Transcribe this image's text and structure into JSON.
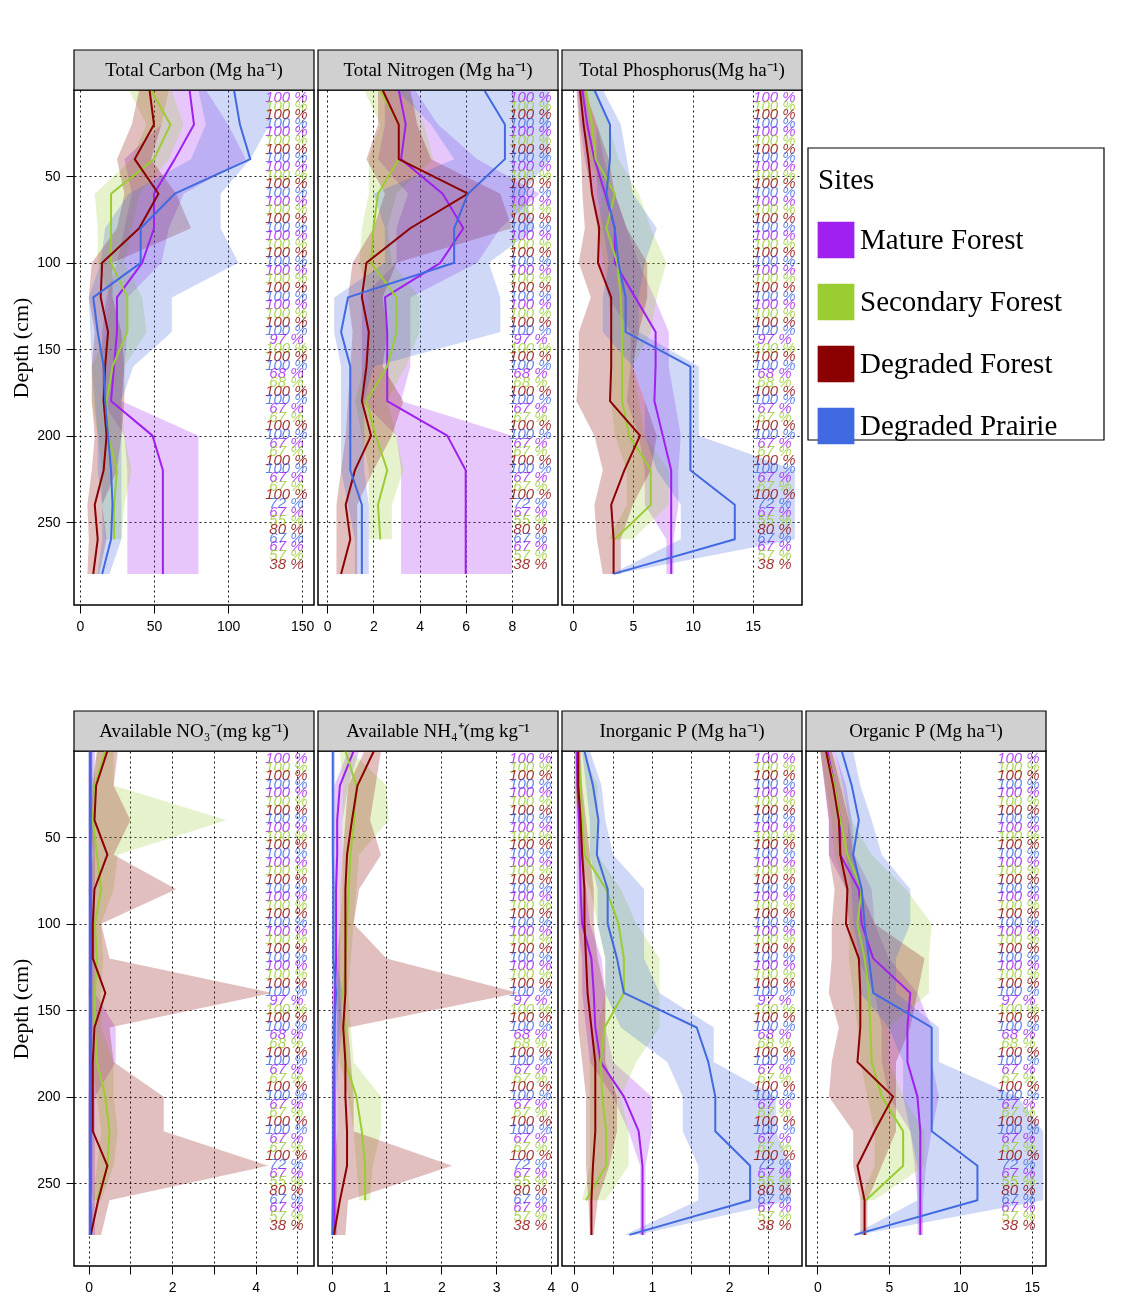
{
  "chart_data": [
    {
      "type": "line",
      "orientation": "horizontal",
      "title": "Total Carbon (Mg ha⁻¹)",
      "ylabel": "Depth (cm)",
      "xlim": [
        -4,
        158
      ],
      "xticks": [
        0,
        50,
        100,
        150
      ],
      "ylim": [
        298,
        0
      ],
      "yticks": [
        50,
        100,
        150,
        200,
        250
      ],
      "grid": true,
      "x": [
        0,
        20,
        40,
        60,
        80,
        100,
        120,
        140,
        160,
        180,
        200,
        220,
        240,
        260,
        280
      ],
      "series": [
        {
          "color": "#a020f0",
          "values": [
            74,
            77,
            64,
            50,
            50,
            42,
            25,
            25,
            23,
            21,
            49,
            56,
            56,
            56,
            56
          ],
          "lower": [
            60,
            55,
            30,
            35,
            30,
            25,
            18,
            15,
            15,
            15,
            30,
            32,
            32,
            32,
            32
          ],
          "upper": [
            85,
            100,
            112,
            70,
            60,
            55,
            32,
            32,
            30,
            28,
            80,
            80,
            80,
            80,
            80
          ]
        },
        {
          "color": "#9acd32",
          "values": [
            48,
            61,
            50,
            21,
            21,
            21,
            32,
            32,
            22,
            18,
            19,
            25,
            23,
            23,
            null
          ],
          "lower": [
            33,
            45,
            35,
            10,
            12,
            12,
            20,
            18,
            8,
            8,
            12,
            15,
            15,
            17,
            null
          ],
          "upper": [
            62,
            70,
            60,
            40,
            35,
            30,
            42,
            45,
            30,
            28,
            30,
            35,
            30,
            28,
            null
          ]
        },
        {
          "color": "#8b0000",
          "values": [
            47,
            50,
            37,
            53,
            40,
            15,
            14,
            19,
            17,
            16,
            18,
            16,
            10,
            12,
            9
          ],
          "lower": [
            40,
            35,
            25,
            30,
            25,
            8,
            6,
            10,
            8,
            8,
            10,
            8,
            5,
            6,
            5
          ],
          "upper": [
            60,
            55,
            48,
            65,
            75,
            22,
            22,
            28,
            30,
            30,
            28,
            25,
            15,
            18,
            13
          ]
        },
        {
          "color": "#4169e1",
          "values": [
            104,
            108,
            115,
            64,
            41,
            41,
            9,
            12,
            16,
            17,
            19,
            21,
            22,
            21,
            15
          ],
          "lower": [
            80,
            85,
            75,
            33,
            17,
            14,
            6,
            7,
            8,
            10,
            12,
            12,
            15,
            15,
            12
          ],
          "upper": [
            128,
            128,
            115,
            95,
            95,
            107,
            62,
            62,
            36,
            28,
            28,
            28,
            28,
            28,
            20
          ]
        }
      ],
      "annotations": [
        "100 %",
        "100 %",
        "100 %",
        "100 %",
        "100 %",
        "100 %",
        "100 %",
        "100 %",
        "100 %",
        "100 %",
        "100 %",
        "100 %",
        "100 %",
        "100 %",
        "100 %",
        "100 %",
        "100 %",
        "100 %",
        "100 %",
        "100 %",
        "100 %",
        "100 %",
        "100 %",
        "100 %",
        "100 %",
        "100 %",
        "100 %",
        "100 %",
        "97 %",
        "100 %",
        "100 %",
        "100 %",
        "68 %",
        "68 %",
        "100 %",
        "100 %",
        "67 %",
        "67 %",
        "100 %",
        "100 %",
        "67 %",
        "67 %",
        "100 %",
        "100 %",
        "67 %",
        "67 %",
        "100 %",
        "72 %",
        "67 %",
        "55 %",
        "80 %",
        "67 %",
        "67 %",
        "57 %",
        "38 %"
      ]
    },
    {
      "type": "line",
      "orientation": "horizontal",
      "title": "Total Nitrogen (Mg ha⁻¹)",
      "xlim": [
        -0.4,
        10
      ],
      "xticks": [
        0,
        2,
        4,
        6,
        8
      ],
      "ylim": [
        298,
        0
      ],
      "yticks": [
        50,
        100,
        150,
        200,
        250
      ],
      "grid": true,
      "tick_labels": "x",
      "x": [
        0,
        20,
        40,
        60,
        80,
        100,
        120,
        140,
        160,
        180,
        200,
        220,
        240,
        260,
        280
      ],
      "series": [
        {
          "color": "#a020f0",
          "values": [
            3.1,
            3.4,
            3.2,
            5.0,
            5.9,
            4.9,
            2.5,
            2.6,
            2.6,
            2.6,
            5.2,
            6.0,
            6.0,
            6.0,
            6.0
          ],
          "lower": [
            2.5,
            2.5,
            2.2,
            3.5,
            3.0,
            3.0,
            1.5,
            1.5,
            1.5,
            1.5,
            3.0,
            3.2,
            3.2,
            3.2,
            3.2
          ],
          "upper": [
            3.8,
            4.8,
            6.5,
            9.2,
            7.5,
            6.5,
            3.6,
            3.6,
            3.6,
            3.2,
            8.0,
            8.0,
            8.0,
            8.0,
            8.0
          ]
        },
        {
          "color": "#9acd32",
          "values": [
            2.3,
            3.1,
            3.1,
            2.2,
            2.0,
            1.9,
            3.0,
            3.0,
            2.6,
            1.7,
            2.1,
            2.6,
            2.2,
            2.3,
            null
          ],
          "lower": [
            1.6,
            2.3,
            1.8,
            1.8,
            1.5,
            1.4,
            1.8,
            1.8,
            1.6,
            1.2,
            1.5,
            1.8,
            1.8,
            1.8,
            null
          ],
          "upper": [
            3.5,
            4.2,
            4.6,
            3.0,
            2.6,
            2.8,
            4.0,
            4.0,
            3.4,
            2.6,
            3.0,
            3.3,
            2.8,
            2.8,
            null
          ]
        },
        {
          "color": "#8b0000",
          "values": [
            2.4,
            3.1,
            3.1,
            6.1,
            3.6,
            1.7,
            1.5,
            1.8,
            1.7,
            1.5,
            1.9,
            1.2,
            0.8,
            1.0,
            0.6
          ],
          "lower": [
            2.2,
            2.2,
            1.7,
            2.5,
            2.0,
            1.1,
            0.9,
            1.1,
            1.0,
            0.9,
            0.8,
            0.6,
            0.4,
            0.4,
            0.4
          ],
          "upper": [
            3.6,
            3.9,
            4.5,
            7.5,
            8.0,
            3.0,
            2.4,
            2.6,
            2.4,
            3.3,
            2.8,
            2.0,
            1.3,
            1.3,
            1.3
          ]
        },
        {
          "color": "#4169e1",
          "values": [
            6.8,
            7.7,
            7.7,
            6.1,
            5.5,
            5.5,
            0.9,
            0.6,
            1.0,
            1.0,
            1.0,
            1.0,
            1.5,
            1.5,
            1.5
          ],
          "lower": [
            3.0,
            4.5,
            5.5,
            2.0,
            2.5,
            2.5,
            0.3,
            0.3,
            0.6,
            0.6,
            0.6,
            0.6,
            0.9,
            1.2,
            1.2
          ],
          "upper": [
            9.6,
            9.6,
            9.6,
            8.5,
            9.0,
            7.0,
            7.5,
            7.5,
            2.0,
            1.6,
            1.6,
            1.6,
            1.8,
            1.8,
            1.8
          ]
        }
      ],
      "annotations": [
        "100 %",
        "100 %",
        "100 %",
        "100 %",
        "100 %",
        "100 %",
        "100 %",
        "100 %",
        "100 %",
        "100 %",
        "100 %",
        "100 %",
        "100 %",
        "100 %",
        "100 %",
        "100 %",
        "100 %",
        "100 %",
        "100 %",
        "100 %",
        "100 %",
        "100 %",
        "100 %",
        "100 %",
        "100 %",
        "100 %",
        "100 %",
        "100 %",
        "97 %",
        "100 %",
        "100 %",
        "100 %",
        "68 %",
        "68 %",
        "100 %",
        "100 %",
        "67 %",
        "67 %",
        "100 %",
        "100 %",
        "67 %",
        "67 %",
        "100 %",
        "100 %",
        "67 %",
        "67 %",
        "100 %",
        "72 %",
        "67 %",
        "55 %",
        "80 %",
        "67 %",
        "67 %",
        "57 %",
        "38 %"
      ]
    },
    {
      "type": "line",
      "orientation": "horizontal",
      "title": "Total Phosphorus(Mg ha⁻¹)",
      "xlim": [
        -0.9,
        19.1
      ],
      "xticks": [
        0,
        5,
        10,
        15
      ],
      "ylim": [
        298,
        0
      ],
      "yticks": [
        50,
        100,
        150,
        200,
        250
      ],
      "grid": true,
      "tick_labels": "x",
      "legend": "right",
      "legend_title": "Sites",
      "x": [
        0,
        20,
        40,
        60,
        80,
        100,
        120,
        140,
        160,
        180,
        200,
        220,
        240,
        260,
        280
      ],
      "series": [
        {
          "name": "Mature Forest",
          "color": "#a020f0",
          "values": [
            0.8,
            1.2,
            1.8,
            2.7,
            3.5,
            3.5,
            5.2,
            6.9,
            6.9,
            6.8,
            7.5,
            8.2,
            8.2,
            8.2,
            8.2
          ],
          "lower": [
            0.4,
            0.6,
            1.0,
            1.6,
            2.2,
            2.2,
            3.0,
            4.8,
            4.8,
            4.5,
            5.5,
            6.0,
            6.0,
            7.8,
            7.8
          ],
          "upper": [
            1.2,
            2.0,
            2.6,
            3.5,
            4.5,
            5.5,
            6.8,
            8.0,
            8.0,
            8.5,
            9.0,
            8.8,
            8.8,
            8.4,
            8.4
          ]
        },
        {
          "name": "Secondary Forest",
          "color": "#9acd32",
          "values": [
            1.1,
            1.6,
            1.9,
            3.5,
            2.8,
            3.7,
            4.0,
            4.1,
            4.1,
            4.1,
            4.7,
            6.5,
            6.5,
            3.5,
            null
          ],
          "lower": [
            0.6,
            1.0,
            1.3,
            2.5,
            2.0,
            2.6,
            3.0,
            3.2,
            3.2,
            3.2,
            3.5,
            4.5,
            4.5,
            3.0,
            null
          ],
          "upper": [
            1.8,
            3.0,
            3.8,
            5.5,
            6.5,
            7.8,
            7.0,
            6.5,
            5.0,
            5.5,
            6.0,
            8.0,
            8.0,
            5.0,
            null
          ]
        },
        {
          "name": "Degraded Forest",
          "color": "#8b0000",
          "values": [
            0.6,
            0.9,
            1.3,
            1.6,
            2.2,
            2.1,
            3.2,
            3.2,
            3.2,
            3.1,
            5.6,
            4.3,
            3.2,
            3.4,
            3.4
          ],
          "lower": [
            0.3,
            0.5,
            0.7,
            0.8,
            1.0,
            0.5,
            1.5,
            0.5,
            0.5,
            0.3,
            1.8,
            2.5,
            1.8,
            2.0,
            2.5
          ],
          "upper": [
            1.0,
            2.0,
            3.0,
            3.5,
            4.5,
            6.2,
            6.2,
            5.5,
            5.0,
            6.0,
            7.0,
            6.5,
            5.0,
            4.0,
            4.0
          ]
        },
        {
          "name": "Degraded Prairie",
          "color": "#4169e1",
          "values": [
            1.8,
            3.1,
            3.1,
            2.8,
            3.5,
            3.8,
            4.4,
            4.4,
            9.8,
            9.8,
            9.8,
            9.8,
            13.5,
            13.5,
            3.4
          ],
          "lower": [
            1.2,
            2.0,
            2.0,
            2.0,
            2.5,
            3.0,
            2.5,
            2.5,
            5.0,
            6.0,
            6.0,
            7.0,
            9.0,
            9.0,
            3.2
          ],
          "upper": [
            2.5,
            4.0,
            4.5,
            5.0,
            7.0,
            6.0,
            5.5,
            5.5,
            10.5,
            10.5,
            10.5,
            18.5,
            18.5,
            18.5,
            3.6
          ]
        }
      ],
      "annotations": [
        "100 %",
        "100 %",
        "100 %",
        "100 %",
        "100 %",
        "100 %",
        "100 %",
        "100 %",
        "100 %",
        "100 %",
        "100 %",
        "100 %",
        "100 %",
        "100 %",
        "100 %",
        "100 %",
        "100 %",
        "100 %",
        "100 %",
        "100 %",
        "100 %",
        "100 %",
        "100 %",
        "100 %",
        "100 %",
        "100 %",
        "100 %",
        "100 %",
        "97 %",
        "100 %",
        "100 %",
        "100 %",
        "68 %",
        "68 %",
        "100 %",
        "100 %",
        "67 %",
        "67 %",
        "100 %",
        "100 %",
        "67 %",
        "67 %",
        "100 %",
        "100 %",
        "67 %",
        "67 %",
        "100 %",
        "72 %",
        "67 %",
        "55 %",
        "80 %",
        "67 %",
        "67 %",
        "57 %",
        "38 %"
      ]
    },
    {
      "type": "line",
      "orientation": "horizontal",
      "title": "Available NO₃⁻(mg kg⁻¹)",
      "ylabel": "Depth (cm)",
      "xlim": [
        -0.35,
        5.4
      ],
      "xticks": [
        0,
        {
          "value": 1,
          "label": null
        },
        2,
        {
          "value": 3,
          "label": null
        },
        4,
        {
          "value": 5,
          "label": null
        }
      ],
      "ylim": [
        298,
        0
      ],
      "yticks": [
        50,
        100,
        150,
        200,
        250
      ],
      "grid": true,
      "x": [
        0,
        20,
        40,
        60,
        80,
        100,
        120,
        140,
        160,
        180,
        200,
        220,
        240,
        260,
        280
      ],
      "series": [
        {
          "color": "#a020f0",
          "values": [
            0.05,
            0.05,
            0.05,
            0.05,
            0.05,
            0.05,
            0.05,
            0.05,
            0.05,
            0.05,
            0.05,
            0.05,
            0.05,
            0.05,
            0.05
          ],
          "lower": [
            0,
            0,
            0,
            0,
            0,
            0,
            0,
            0,
            0,
            0,
            0,
            0,
            0,
            0,
            0
          ],
          "upper": [
            0.15,
            0.15,
            0.15,
            0.15,
            0.15,
            0.15,
            0.15,
            0.15,
            0.65,
            0.65,
            0.15,
            0.15,
            0.15,
            0.15,
            0.15
          ]
        },
        {
          "color": "#9acd32",
          "values": [
            0.4,
            0.15,
            0.1,
            0.2,
            0.3,
            0.15,
            0.2,
            0.15,
            0.15,
            0.2,
            0.4,
            0.5,
            0.45,
            0.2,
            null
          ],
          "lower": [
            0.2,
            0.05,
            0,
            0.05,
            0.1,
            0.05,
            0.05,
            0.05,
            0.05,
            0.05,
            0.2,
            0.3,
            0.2,
            0.1,
            null
          ],
          "upper": [
            0.6,
            0.6,
            3.3,
            0.7,
            0.6,
            0.3,
            0.35,
            0.3,
            0.3,
            0.6,
            0.6,
            0.7,
            0.6,
            0.3,
            null
          ]
        },
        {
          "color": "#8b0000",
          "values": [
            0.45,
            0.18,
            0.14,
            0.45,
            0.14,
            0.1,
            0.1,
            0.4,
            0.14,
            0.1,
            0.1,
            0.1,
            0.45,
            0.23,
            0.05
          ],
          "lower": [
            0.2,
            0.1,
            0.05,
            0.1,
            0,
            0.05,
            0.05,
            0,
            0.05,
            0.05,
            0,
            0,
            0,
            0.1,
            0
          ],
          "upper": [
            0.7,
            0.6,
            1.0,
            0.6,
            2.1,
            0.3,
            0.5,
            4.4,
            0.5,
            0.6,
            1.8,
            1.8,
            4.3,
            0.5,
            0.3
          ]
        },
        {
          "color": "#4169e1",
          "values": [
            0.03,
            0.03,
            0.03,
            0.03,
            0.03,
            0.03,
            0.03,
            0.03,
            0.03,
            0.03,
            0.03,
            0.03,
            0.03,
            0.03,
            0.03
          ],
          "lower": [
            0,
            0,
            0,
            0,
            0,
            0,
            0,
            0,
            0,
            0,
            0,
            0,
            0,
            0,
            0
          ],
          "upper": [
            0.1,
            0.1,
            0.1,
            0.1,
            0.1,
            0.1,
            0.1,
            0.1,
            0.1,
            0.1,
            0.1,
            0.1,
            0.1,
            0.1,
            0.1
          ]
        }
      ],
      "annotations": [
        "100 %",
        "100 %",
        "100 %",
        "100 %",
        "100 %",
        "100 %",
        "100 %",
        "100 %",
        "100 %",
        "100 %",
        "100 %",
        "100 %",
        "100 %",
        "100 %",
        "100 %",
        "100 %",
        "100 %",
        "100 %",
        "100 %",
        "100 %",
        "100 %",
        "100 %",
        "100 %",
        "100 %",
        "100 %",
        "100 %",
        "100 %",
        "100 %",
        "97 %",
        "100 %",
        "100 %",
        "100 %",
        "68 %",
        "68 %",
        "100 %",
        "100 %",
        "67 %",
        "67 %",
        "100 %",
        "100 %",
        "67 %",
        "67 %",
        "100 %",
        "100 %",
        "67 %",
        "67 %",
        "100 %",
        "72 %",
        "67 %",
        "55 %",
        "80 %",
        "67 %",
        "67 %",
        "57 %",
        "38 %"
      ]
    },
    {
      "type": "line",
      "orientation": "horizontal",
      "title": "Available NH₄⁺(mg kg⁻¹",
      "xlim": [
        -0.25,
        4.13
      ],
      "xticks": [
        0,
        1,
        2,
        3,
        4
      ],
      "ylim": [
        298,
        0
      ],
      "yticks": [
        50,
        100,
        150,
        200,
        250
      ],
      "grid": true,
      "tick_labels": "x",
      "x": [
        0,
        20,
        40,
        60,
        80,
        100,
        120,
        140,
        160,
        180,
        200,
        220,
        240,
        260,
        280
      ],
      "series": [
        {
          "color": "#a020f0",
          "values": [
            0.4,
            0.15,
            0.1,
            0.1,
            0.08,
            0.08,
            0.08,
            0.06,
            0.05,
            0.05,
            0.05,
            0.05,
            0.05,
            0.05,
            0.05
          ],
          "lower": [
            0.3,
            0.05,
            0.03,
            0.03,
            0.02,
            0.02,
            0.02,
            0.01,
            0,
            0,
            0,
            0,
            0,
            0,
            0
          ],
          "upper": [
            0.5,
            0.3,
            0.2,
            0.2,
            0.15,
            0.15,
            0.15,
            0.15,
            0.2,
            0.12,
            0.1,
            0.1,
            0.1,
            0.1,
            0.1
          ]
        },
        {
          "color": "#9acd32",
          "values": [
            0.25,
            0.45,
            0.41,
            0.34,
            0.31,
            0.28,
            0.25,
            0.21,
            0.25,
            0.25,
            0.45,
            0.55,
            0.61,
            0.61,
            null
          ],
          "lower": [
            0.15,
            0.2,
            0.2,
            0.2,
            0.2,
            0.15,
            0.15,
            0.1,
            0.15,
            0.15,
            0.3,
            0.4,
            0.45,
            0.5,
            null
          ],
          "upper": [
            0.35,
            1.0,
            1.04,
            0.5,
            0.45,
            0.4,
            0.35,
            0.3,
            0.35,
            0.4,
            0.9,
            0.9,
            0.75,
            0.7,
            null
          ]
        },
        {
          "color": "#8b0000",
          "values": [
            0.77,
            0.47,
            0.37,
            0.28,
            0.25,
            0.25,
            0.25,
            0.25,
            0.21,
            0.25,
            0.25,
            0.28,
            0.28,
            0.15,
            0.04
          ],
          "lower": [
            0.6,
            0.3,
            0.25,
            0.2,
            0.15,
            0.15,
            0.1,
            0.1,
            0.1,
            0.1,
            0.1,
            0.1,
            0.05,
            0.05,
            0
          ],
          "upper": [
            0.9,
            0.8,
            0.7,
            0.9,
            0.5,
            0.4,
            1.0,
            3.4,
            0.3,
            0.35,
            0.4,
            0.4,
            2.2,
            0.3,
            0.25
          ]
        },
        {
          "color": "#4169e1",
          "values": [
            0.02,
            0.02,
            0.02,
            0.02,
            0.03,
            0.03,
            0.03,
            0.08,
            0.05,
            0.04,
            0.03,
            0.03,
            0.02,
            0.02,
            0.01
          ],
          "lower": [
            0,
            0,
            0,
            0,
            0,
            0,
            0,
            0.02,
            0,
            0,
            0,
            0,
            0,
            0,
            0
          ],
          "upper": [
            0.06,
            0.06,
            0.06,
            0.06,
            0.08,
            0.08,
            0.08,
            0.2,
            0.15,
            0.1,
            0.08,
            0.08,
            0.06,
            0.06,
            0.05
          ]
        }
      ],
      "annotations": [
        "100 %",
        "100 %",
        "100 %",
        "100 %",
        "100 %",
        "100 %",
        "100 %",
        "100 %",
        "100 %",
        "100 %",
        "100 %",
        "100 %",
        "100 %",
        "100 %",
        "100 %",
        "100 %",
        "100 %",
        "100 %",
        "100 %",
        "100 %",
        "100 %",
        "100 %",
        "100 %",
        "100 %",
        "100 %",
        "100 %",
        "100 %",
        "100 %",
        "97 %",
        "100 %",
        "100 %",
        "100 %",
        "68 %",
        "68 %",
        "100 %",
        "100 %",
        "67 %",
        "67 %",
        "100 %",
        "100 %",
        "67 %",
        "67 %",
        "100 %",
        "100 %",
        "67 %",
        "67 %",
        "100 %",
        "72 %",
        "67 %",
        "55 %",
        "80 %",
        "67 %",
        "67 %",
        "57 %",
        "38 %"
      ]
    },
    {
      "type": "line",
      "orientation": "horizontal",
      "title": "Inorganic P (Mg ha⁻¹)",
      "xlim": [
        -0.16,
        2.94
      ],
      "xticks": [
        0,
        {
          "value": 0.5,
          "label": null
        },
        1,
        {
          "value": 1.5,
          "label": null
        },
        2,
        {
          "value": 2.5,
          "label": null
        }
      ],
      "ylim": [
        298,
        0
      ],
      "yticks": [
        50,
        100,
        150,
        200,
        250
      ],
      "grid": true,
      "tick_labels": "x",
      "x": [
        0,
        20,
        40,
        60,
        80,
        100,
        120,
        140,
        160,
        180,
        200,
        220,
        240,
        260,
        280
      ],
      "series": [
        {
          "color": "#a020f0",
          "values": [
            0.03,
            0.04,
            0.06,
            0.07,
            0.08,
            0.1,
            0.22,
            0.25,
            0.27,
            0.34,
            0.64,
            0.83,
            0.88,
            0.88,
            0.88
          ],
          "lower": [
            0,
            0,
            0.02,
            0.03,
            0.03,
            0.04,
            0.1,
            0.1,
            0.15,
            0.2,
            0.5,
            0.7,
            0.85,
            0.85,
            0.85
          ],
          "upper": [
            0.06,
            0.08,
            0.1,
            0.12,
            0.15,
            0.2,
            0.35,
            0.4,
            0.4,
            0.5,
            1.0,
            1.0,
            0.92,
            0.92,
            0.92
          ]
        },
        {
          "color": "#9acd32",
          "values": [
            0.05,
            0.08,
            0.1,
            0.13,
            0.41,
            0.57,
            0.64,
            0.64,
            0.39,
            0.34,
            0.36,
            0.41,
            0.41,
            0.15,
            null
          ],
          "lower": [
            0,
            0,
            0.05,
            0.05,
            0.2,
            0.3,
            0.4,
            0.4,
            0.3,
            0.2,
            0.2,
            0.2,
            0.2,
            0.1,
            null
          ],
          "upper": [
            0.1,
            0.3,
            0.3,
            0.3,
            0.6,
            0.8,
            1.1,
            1.1,
            1.1,
            0.8,
            0.6,
            0.7,
            0.7,
            0.4,
            null
          ]
        },
        {
          "color": "#8b0000",
          "values": [
            0.05,
            0.05,
            0.08,
            0.1,
            0.13,
            0.13,
            0.15,
            0.17,
            0.22,
            0.27,
            0.27,
            0.27,
            0.24,
            0.22,
            0.22
          ],
          "lower": [
            0.02,
            0.02,
            0.04,
            0.05,
            0.06,
            0.06,
            0.05,
            0.05,
            0.05,
            0.1,
            0.15,
            0.15,
            0.15,
            0.18,
            0.2
          ],
          "upper": [
            0.08,
            0.1,
            0.15,
            0.2,
            0.25,
            0.25,
            0.3,
            0.4,
            0.4,
            0.4,
            0.55,
            0.55,
            0.45,
            0.3,
            0.25
          ]
        },
        {
          "color": "#4169e1",
          "values": [
            0.13,
            0.24,
            0.31,
            0.29,
            0.43,
            0.43,
            0.55,
            0.64,
            1.58,
            1.73,
            1.82,
            1.82,
            2.27,
            2.27,
            0.71
          ],
          "lower": [
            0.1,
            0.15,
            0.2,
            0.2,
            0.3,
            0.3,
            0.4,
            0.4,
            0.6,
            1.2,
            1.4,
            1.4,
            1.6,
            1.6,
            0.65
          ],
          "upper": [
            0.2,
            0.35,
            0.4,
            0.5,
            0.9,
            0.9,
            0.9,
            1.1,
            1.8,
            1.8,
            2.6,
            2.6,
            2.8,
            2.8,
            0.8
          ]
        }
      ],
      "annotations": [
        "100 %",
        "100 %",
        "100 %",
        "100 %",
        "100 %",
        "100 %",
        "100 %",
        "100 %",
        "100 %",
        "100 %",
        "100 %",
        "100 %",
        "100 %",
        "100 %",
        "100 %",
        "100 %",
        "100 %",
        "100 %",
        "100 %",
        "100 %",
        "100 %",
        "100 %",
        "100 %",
        "100 %",
        "100 %",
        "100 %",
        "100 %",
        "100 %",
        "97 %",
        "100 %",
        "100 %",
        "100 %",
        "68 %",
        "68 %",
        "100 %",
        "100 %",
        "67 %",
        "67 %",
        "100 %",
        "100 %",
        "67 %",
        "67 %",
        "100 %",
        "100 %",
        "67 %",
        "67 %",
        "100 %",
        "72 %",
        "67 %",
        "55 %",
        "80 %",
        "67 %",
        "67 %",
        "57 %",
        "38 %"
      ]
    },
    {
      "type": "line",
      "orientation": "horizontal",
      "title": "Organic P (Mg ha⁻¹)",
      "xlim": [
        -0.8,
        16
      ],
      "xticks": [
        0,
        5,
        10,
        15
      ],
      "ylim": [
        298,
        0
      ],
      "yticks": [
        50,
        100,
        150,
        200,
        250
      ],
      "grid": true,
      "tick_labels": "x",
      "x": [
        0,
        20,
        40,
        60,
        80,
        100,
        120,
        140,
        160,
        180,
        200,
        220,
        240,
        260,
        280
      ],
      "series": [
        {
          "color": "#a020f0",
          "values": [
            0.7,
            1.2,
            1.6,
            1.6,
            2.9,
            3.1,
            3.9,
            6.5,
            6.3,
            6.3,
            7.0,
            7.2,
            7.2,
            7.2,
            7.2
          ],
          "lower": [
            0.2,
            0.5,
            0.8,
            0.8,
            2.0,
            2.2,
            2.8,
            4.0,
            4.5,
            4.5,
            5.0,
            6.5,
            6.8,
            7.0,
            7.0
          ],
          "upper": [
            1.2,
            2.0,
            2.4,
            2.6,
            3.8,
            4.0,
            5.0,
            7.0,
            8.0,
            8.0,
            8.5,
            8.0,
            7.6,
            7.4,
            7.4
          ]
        },
        {
          "color": "#9acd32",
          "values": [
            0.6,
            1.2,
            1.6,
            2.1,
            3.1,
            2.8,
            3.3,
            3.6,
            3.7,
            3.8,
            4.5,
            6.0,
            6.0,
            3.4,
            null
          ],
          "lower": [
            0.2,
            0.6,
            1.0,
            1.2,
            2.0,
            2.2,
            2.2,
            2.5,
            2.8,
            3.0,
            3.5,
            4.0,
            4.0,
            3.0,
            null
          ],
          "upper": [
            1.0,
            1.8,
            2.4,
            3.8,
            6.2,
            8.0,
            7.8,
            7.8,
            5.0,
            5.0,
            6.0,
            7.5,
            7.5,
            4.0,
            null
          ]
        },
        {
          "color": "#8b0000",
          "values": [
            0.6,
            1.1,
            1.5,
            1.6,
            2.1,
            2.0,
            2.9,
            3.0,
            3.0,
            2.8,
            5.3,
            4.0,
            2.8,
            3.3,
            3.3
          ],
          "lower": [
            0.2,
            0.5,
            0.8,
            0.8,
            1.2,
            1.0,
            1.0,
            0.8,
            1.5,
            1.0,
            0.8,
            2.5,
            2.5,
            3.0,
            3.0
          ],
          "upper": [
            1.0,
            1.6,
            2.2,
            2.5,
            3.0,
            4.0,
            7.5,
            7.0,
            6.5,
            5.5,
            5.5,
            5.5,
            4.5,
            3.5,
            3.5
          ]
        },
        {
          "color": "#4169e1",
          "values": [
            1.7,
            2.4,
            2.9,
            2.5,
            3.1,
            3.3,
            3.6,
            3.9,
            8.0,
            8.0,
            8.0,
            8.0,
            11.2,
            11.2,
            2.6
          ],
          "lower": [
            1.2,
            1.8,
            2.2,
            2.0,
            2.4,
            2.5,
            3.0,
            3.0,
            5.0,
            6.0,
            6.0,
            6.5,
            7.0,
            7.0,
            2.5
          ],
          "upper": [
            2.5,
            3.0,
            3.8,
            4.5,
            6.5,
            6.5,
            5.5,
            5.5,
            8.5,
            8.5,
            14.0,
            15.8,
            15.8,
            15.8,
            2.8
          ]
        }
      ],
      "annotations": [
        "100 %",
        "100 %",
        "100 %",
        "100 %",
        "100 %",
        "100 %",
        "100 %",
        "100 %",
        "100 %",
        "100 %",
        "100 %",
        "100 %",
        "100 %",
        "100 %",
        "100 %",
        "100 %",
        "100 %",
        "100 %",
        "100 %",
        "100 %",
        "100 %",
        "100 %",
        "100 %",
        "100 %",
        "100 %",
        "100 %",
        "100 %",
        "100 %",
        "97 %",
        "100 %",
        "100 %",
        "100 %",
        "68 %",
        "68 %",
        "100 %",
        "100 %",
        "67 %",
        "67 %",
        "100 %",
        "100 %",
        "67 %",
        "67 %",
        "100 %",
        "100 %",
        "67 %",
        "67 %",
        "100 %",
        "72 %",
        "67 %",
        "55 %",
        "80 %",
        "67 %",
        "67 %",
        "57 %",
        "38 %"
      ]
    }
  ]
}
